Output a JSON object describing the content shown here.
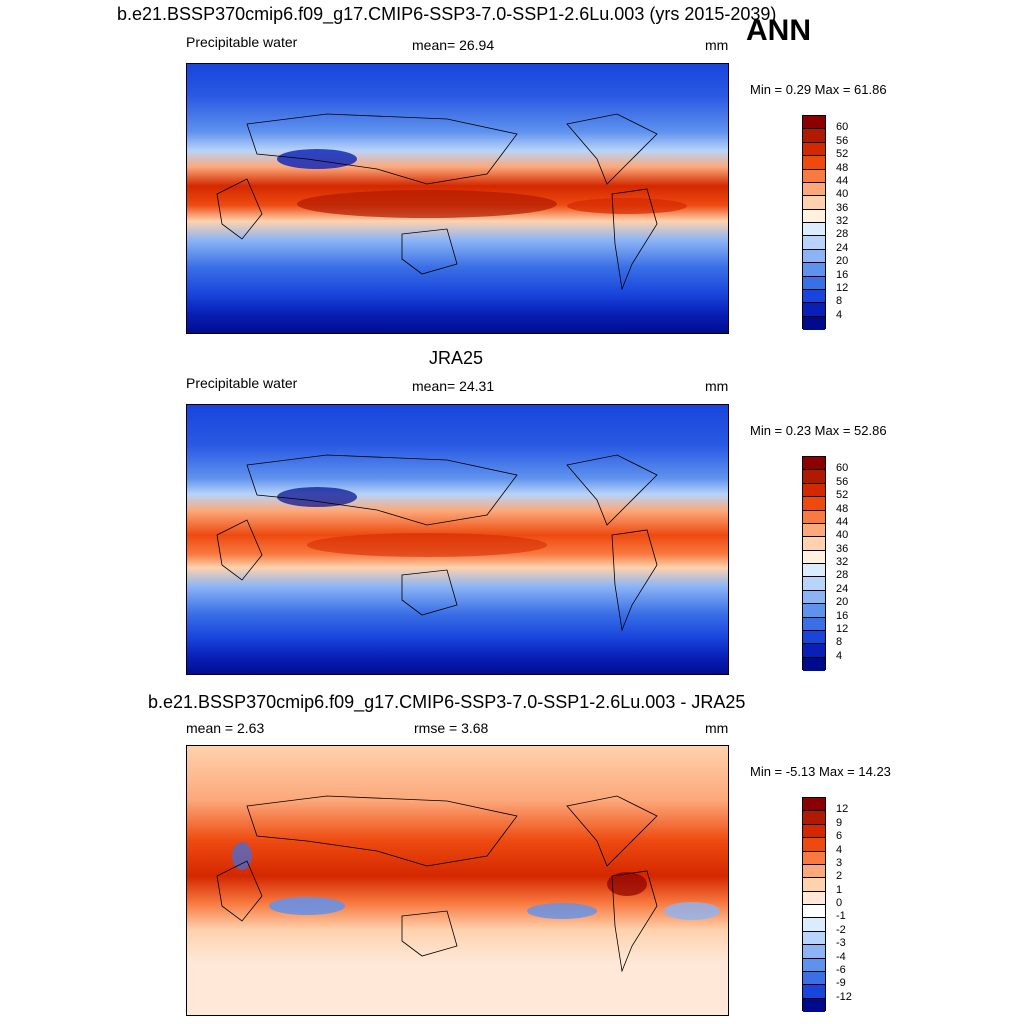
{
  "season": "ANN",
  "panels": [
    {
      "title": "b.e21.BSSP370cmip6.f09_g17.CMIP6-SSP3-7.0-SSP1-2.6Lu.003 (yrs 2015-2039)",
      "left_label": "Precipitable water",
      "center_label": "mean=  26.94",
      "units": "mm",
      "minmax": "Min =   0.29 Max =  61.86",
      "colorbar": {
        "labels": [
          "60",
          "56",
          "52",
          "48",
          "44",
          "40",
          "36",
          "32",
          "28",
          "24",
          "20",
          "16",
          "12",
          "8",
          "4"
        ],
        "colors": [
          "#8b0000",
          "#b01a00",
          "#d42800",
          "#ee4a10",
          "#f87a40",
          "#fca87a",
          "#fed2ae",
          "#fff0e0",
          "#dcecff",
          "#b8d4fa",
          "#8cb4f5",
          "#5f92ee",
          "#3a6fe6",
          "#1845dc",
          "#0820b8",
          "#000a8c"
        ]
      },
      "chart_data": {
        "type": "heatmap",
        "title": "b.e21.BSSP370cmip6.f09_g17.CMIP6-SSP3-7.0-SSP1-2.6Lu.003 (yrs 2015-2039)",
        "variable": "Precipitable water",
        "mean": 26.94,
        "min": 0.29,
        "max": 61.86,
        "units": "mm",
        "contour_levels": [
          4,
          8,
          12,
          16,
          20,
          24,
          28,
          32,
          36,
          40,
          44,
          48,
          52,
          56,
          60
        ]
      }
    },
    {
      "title": "JRA25",
      "left_label": "Precipitable water",
      "center_label": "mean=  24.31",
      "units": "mm",
      "minmax": "Min =   0.23 Max =  52.86",
      "colorbar": {
        "labels": [
          "60",
          "56",
          "52",
          "48",
          "44",
          "40",
          "36",
          "32",
          "28",
          "24",
          "20",
          "16",
          "12",
          "8",
          "4"
        ],
        "colors": [
          "#8b0000",
          "#b01a00",
          "#d42800",
          "#ee4a10",
          "#f87a40",
          "#fca87a",
          "#fed2ae",
          "#fff0e0",
          "#dcecff",
          "#b8d4fa",
          "#8cb4f5",
          "#5f92ee",
          "#3a6fe6",
          "#1845dc",
          "#0820b8",
          "#000a8c"
        ]
      },
      "chart_data": {
        "type": "heatmap",
        "title": "JRA25",
        "variable": "Precipitable water",
        "mean": 24.31,
        "min": 0.23,
        "max": 52.86,
        "units": "mm",
        "contour_levels": [
          4,
          8,
          12,
          16,
          20,
          24,
          28,
          32,
          36,
          40,
          44,
          48,
          52,
          56,
          60
        ]
      }
    },
    {
      "title": "b.e21.BSSP370cmip6.f09_g17.CMIP6-SSP3-7.0-SSP1-2.6Lu.003 - JRA25",
      "left_label": "mean =   2.63",
      "center_label": "rmse =   3.68",
      "units": "mm",
      "minmax": "Min =  -5.13 Max =  14.23",
      "colorbar": {
        "labels": [
          "12",
          "9",
          "6",
          "4",
          "3",
          "2",
          "1",
          "0",
          "-1",
          "-2",
          "-3",
          "-4",
          "-6",
          "-9",
          "-12"
        ],
        "colors": [
          "#8b0000",
          "#b01a00",
          "#d42800",
          "#ee4a10",
          "#f87a40",
          "#fca87a",
          "#fed2ae",
          "#ffe8d8",
          "#ffffff",
          "#dcecff",
          "#b8d4fa",
          "#8cb4f5",
          "#5f92ee",
          "#3a6fe6",
          "#1845dc",
          "#000a8c"
        ]
      },
      "chart_data": {
        "type": "heatmap",
        "title": "b.e21.BSSP370cmip6.f09_g17.CMIP6-SSP3-7.0-SSP1-2.6Lu.003 - JRA25",
        "mean": 2.63,
        "rmse": 3.68,
        "min": -5.13,
        "max": 14.23,
        "units": "mm",
        "contour_levels": [
          -12,
          -9,
          -6,
          -4,
          -3,
          -2,
          -1,
          0,
          1,
          2,
          3,
          4,
          6,
          9,
          12
        ]
      }
    }
  ]
}
